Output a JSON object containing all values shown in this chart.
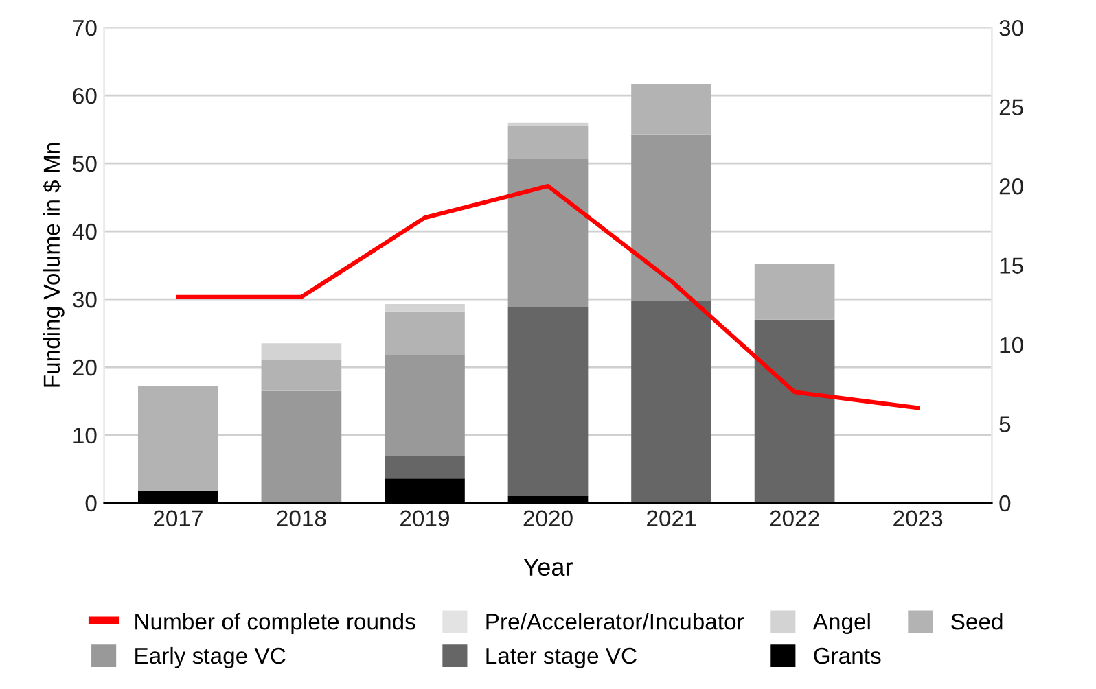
{
  "chart_data": {
    "type": "bar",
    "stacked": true,
    "xlabel": "Year",
    "ylabel": "Funding Volume in $ Mn",
    "categories": [
      "2017",
      "2018",
      "2019",
      "2020",
      "2021",
      "2022",
      "2023"
    ],
    "series": [
      {
        "name": "Grants",
        "color": "#000000",
        "values": [
          1.8,
          0,
          3.6,
          1.0,
          0,
          0,
          0
        ]
      },
      {
        "name": "Later stage VC",
        "color": "#666666",
        "values": [
          0,
          0,
          3.3,
          27.8,
          29.7,
          27.0,
          0
        ]
      },
      {
        "name": "Early stage VC",
        "color": "#999999",
        "values": [
          0,
          16.5,
          15.0,
          22.0,
          24.6,
          0,
          0
        ]
      },
      {
        "name": "Seed",
        "color": "#b3b3b3",
        "values": [
          15.4,
          4.5,
          6.3,
          4.7,
          7.4,
          8.2,
          0
        ]
      },
      {
        "name": "Angel",
        "color": "#d3d3d3",
        "values": [
          0,
          2.5,
          1.1,
          0.5,
          0,
          0,
          0
        ]
      },
      {
        "name": "Pre/Accelerator/Incubator",
        "color": "#e3e3e3",
        "values": [
          0,
          0,
          0,
          0,
          0,
          0,
          0
        ]
      },
      {
        "name": "Number of complete rounds",
        "type": "line",
        "axis": "y2",
        "color": "#ff0000",
        "values": [
          13,
          13,
          18,
          20,
          14,
          7,
          6
        ]
      }
    ],
    "ylim": [
      0,
      70
    ],
    "yticks": [
      0,
      10,
      20,
      30,
      40,
      50,
      60,
      70
    ],
    "y2lim": [
      0,
      30
    ],
    "y2ticks": [
      0,
      5,
      10,
      15,
      20,
      25,
      30
    ],
    "grid": "y",
    "legend": "bottom",
    "marker": "none"
  }
}
